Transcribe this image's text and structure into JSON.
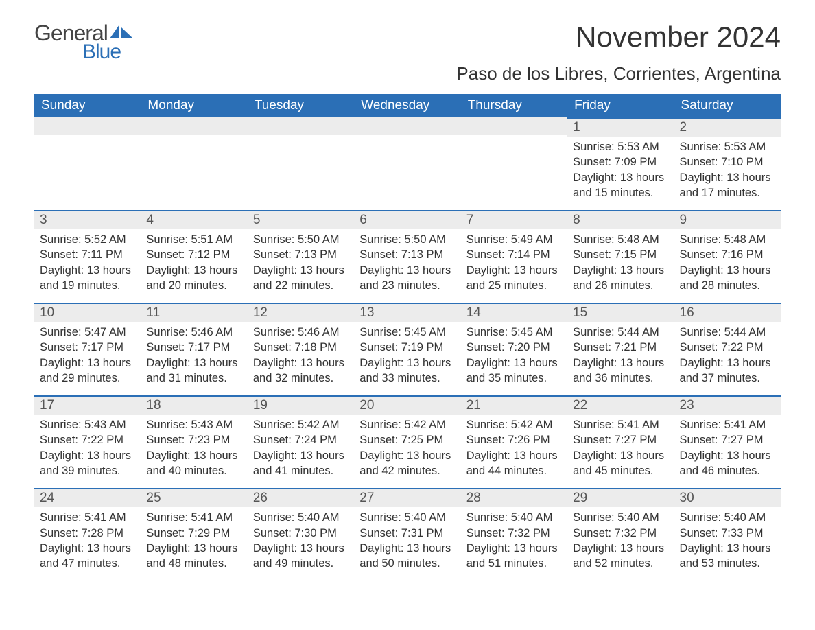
{
  "logo": {
    "text_general": "General",
    "text_blue": "Blue",
    "icon_color": "#2b6fb6"
  },
  "header": {
    "month_title": "November 2024",
    "location": "Paso de los Libres, Corrientes, Argentina"
  },
  "colors": {
    "header_bg": "#2b6fb6",
    "header_text": "#ffffff",
    "day_bar_bg": "#ececec",
    "day_bar_border": "#2b6fb6",
    "body_text": "#333333",
    "day_num_text": "#555555",
    "page_bg": "#ffffff"
  },
  "typography": {
    "month_title_fontsize": 42,
    "location_fontsize": 26,
    "header_cell_fontsize": 19,
    "day_num_fontsize": 19,
    "body_fontsize": 16.5,
    "font_family": "Arial"
  },
  "layout": {
    "columns": 7,
    "rows": 5,
    "first_day_column_index": 5
  },
  "day_headers": [
    "Sunday",
    "Monday",
    "Tuesday",
    "Wednesday",
    "Thursday",
    "Friday",
    "Saturday"
  ],
  "days": [
    {
      "n": "1",
      "sunrise": "Sunrise: 5:53 AM",
      "sunset": "Sunset: 7:09 PM",
      "dl1": "Daylight: 13 hours",
      "dl2": "and 15 minutes."
    },
    {
      "n": "2",
      "sunrise": "Sunrise: 5:53 AM",
      "sunset": "Sunset: 7:10 PM",
      "dl1": "Daylight: 13 hours",
      "dl2": "and 17 minutes."
    },
    {
      "n": "3",
      "sunrise": "Sunrise: 5:52 AM",
      "sunset": "Sunset: 7:11 PM",
      "dl1": "Daylight: 13 hours",
      "dl2": "and 19 minutes."
    },
    {
      "n": "4",
      "sunrise": "Sunrise: 5:51 AM",
      "sunset": "Sunset: 7:12 PM",
      "dl1": "Daylight: 13 hours",
      "dl2": "and 20 minutes."
    },
    {
      "n": "5",
      "sunrise": "Sunrise: 5:50 AM",
      "sunset": "Sunset: 7:13 PM",
      "dl1": "Daylight: 13 hours",
      "dl2": "and 22 minutes."
    },
    {
      "n": "6",
      "sunrise": "Sunrise: 5:50 AM",
      "sunset": "Sunset: 7:13 PM",
      "dl1": "Daylight: 13 hours",
      "dl2": "and 23 minutes."
    },
    {
      "n": "7",
      "sunrise": "Sunrise: 5:49 AM",
      "sunset": "Sunset: 7:14 PM",
      "dl1": "Daylight: 13 hours",
      "dl2": "and 25 minutes."
    },
    {
      "n": "8",
      "sunrise": "Sunrise: 5:48 AM",
      "sunset": "Sunset: 7:15 PM",
      "dl1": "Daylight: 13 hours",
      "dl2": "and 26 minutes."
    },
    {
      "n": "9",
      "sunrise": "Sunrise: 5:48 AM",
      "sunset": "Sunset: 7:16 PM",
      "dl1": "Daylight: 13 hours",
      "dl2": "and 28 minutes."
    },
    {
      "n": "10",
      "sunrise": "Sunrise: 5:47 AM",
      "sunset": "Sunset: 7:17 PM",
      "dl1": "Daylight: 13 hours",
      "dl2": "and 29 minutes."
    },
    {
      "n": "11",
      "sunrise": "Sunrise: 5:46 AM",
      "sunset": "Sunset: 7:17 PM",
      "dl1": "Daylight: 13 hours",
      "dl2": "and 31 minutes."
    },
    {
      "n": "12",
      "sunrise": "Sunrise: 5:46 AM",
      "sunset": "Sunset: 7:18 PM",
      "dl1": "Daylight: 13 hours",
      "dl2": "and 32 minutes."
    },
    {
      "n": "13",
      "sunrise": "Sunrise: 5:45 AM",
      "sunset": "Sunset: 7:19 PM",
      "dl1": "Daylight: 13 hours",
      "dl2": "and 33 minutes."
    },
    {
      "n": "14",
      "sunrise": "Sunrise: 5:45 AM",
      "sunset": "Sunset: 7:20 PM",
      "dl1": "Daylight: 13 hours",
      "dl2": "and 35 minutes."
    },
    {
      "n": "15",
      "sunrise": "Sunrise: 5:44 AM",
      "sunset": "Sunset: 7:21 PM",
      "dl1": "Daylight: 13 hours",
      "dl2": "and 36 minutes."
    },
    {
      "n": "16",
      "sunrise": "Sunrise: 5:44 AM",
      "sunset": "Sunset: 7:22 PM",
      "dl1": "Daylight: 13 hours",
      "dl2": "and 37 minutes."
    },
    {
      "n": "17",
      "sunrise": "Sunrise: 5:43 AM",
      "sunset": "Sunset: 7:22 PM",
      "dl1": "Daylight: 13 hours",
      "dl2": "and 39 minutes."
    },
    {
      "n": "18",
      "sunrise": "Sunrise: 5:43 AM",
      "sunset": "Sunset: 7:23 PM",
      "dl1": "Daylight: 13 hours",
      "dl2": "and 40 minutes."
    },
    {
      "n": "19",
      "sunrise": "Sunrise: 5:42 AM",
      "sunset": "Sunset: 7:24 PM",
      "dl1": "Daylight: 13 hours",
      "dl2": "and 41 minutes."
    },
    {
      "n": "20",
      "sunrise": "Sunrise: 5:42 AM",
      "sunset": "Sunset: 7:25 PM",
      "dl1": "Daylight: 13 hours",
      "dl2": "and 42 minutes."
    },
    {
      "n": "21",
      "sunrise": "Sunrise: 5:42 AM",
      "sunset": "Sunset: 7:26 PM",
      "dl1": "Daylight: 13 hours",
      "dl2": "and 44 minutes."
    },
    {
      "n": "22",
      "sunrise": "Sunrise: 5:41 AM",
      "sunset": "Sunset: 7:27 PM",
      "dl1": "Daylight: 13 hours",
      "dl2": "and 45 minutes."
    },
    {
      "n": "23",
      "sunrise": "Sunrise: 5:41 AM",
      "sunset": "Sunset: 7:27 PM",
      "dl1": "Daylight: 13 hours",
      "dl2": "and 46 minutes."
    },
    {
      "n": "24",
      "sunrise": "Sunrise: 5:41 AM",
      "sunset": "Sunset: 7:28 PM",
      "dl1": "Daylight: 13 hours",
      "dl2": "and 47 minutes."
    },
    {
      "n": "25",
      "sunrise": "Sunrise: 5:41 AM",
      "sunset": "Sunset: 7:29 PM",
      "dl1": "Daylight: 13 hours",
      "dl2": "and 48 minutes."
    },
    {
      "n": "26",
      "sunrise": "Sunrise: 5:40 AM",
      "sunset": "Sunset: 7:30 PM",
      "dl1": "Daylight: 13 hours",
      "dl2": "and 49 minutes."
    },
    {
      "n": "27",
      "sunrise": "Sunrise: 5:40 AM",
      "sunset": "Sunset: 7:31 PM",
      "dl1": "Daylight: 13 hours",
      "dl2": "and 50 minutes."
    },
    {
      "n": "28",
      "sunrise": "Sunrise: 5:40 AM",
      "sunset": "Sunset: 7:32 PM",
      "dl1": "Daylight: 13 hours",
      "dl2": "and 51 minutes."
    },
    {
      "n": "29",
      "sunrise": "Sunrise: 5:40 AM",
      "sunset": "Sunset: 7:32 PM",
      "dl1": "Daylight: 13 hours",
      "dl2": "and 52 minutes."
    },
    {
      "n": "30",
      "sunrise": "Sunrise: 5:40 AM",
      "sunset": "Sunset: 7:33 PM",
      "dl1": "Daylight: 13 hours",
      "dl2": "and 53 minutes."
    }
  ]
}
